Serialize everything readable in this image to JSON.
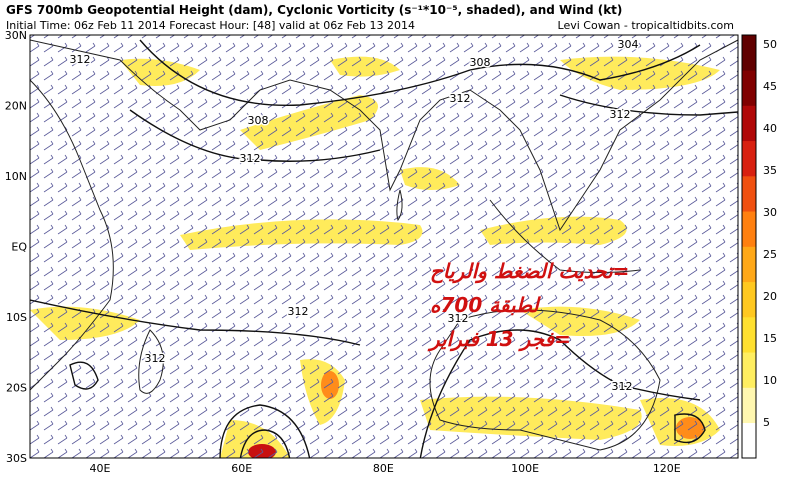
{
  "header": {
    "title": "GFS 700mb Geopotential Height (dam), Cyclonic Vorticity (s⁻¹*10⁻⁵, shaded), and Wind (kt)",
    "subtitle": "Initial Time: 06z Feb 11 2014  Forecast Hour: [48]  valid at 06z Feb 13 2014",
    "credit": "Levi Cowan - tropicaltidbits.com"
  },
  "map": {
    "lat_labels": [
      "30N",
      "20N",
      "10N",
      "EQ",
      "10S",
      "20S",
      "30S"
    ],
    "lon_labels": [
      "40E",
      "60E",
      "80E",
      "100E",
      "120E"
    ],
    "contour_labels": [
      "312",
      "308",
      "304",
      "308",
      "312",
      "312",
      "312",
      "312",
      "312",
      "312",
      "312"
    ]
  },
  "overlay": {
    "lines": [
      "=تحديث الضغط والرياح",
      "لطبقة 700ه",
      "=فجر 13 فبراير"
    ]
  },
  "colorbar": {
    "labels": [
      "50",
      "45",
      "40",
      "35",
      "30",
      "25",
      "20",
      "15",
      "10",
      "5"
    ],
    "colors": [
      "#ffffff",
      "#fff7b0",
      "#ffee60",
      "#ffe030",
      "#ffc820",
      "#ffa818",
      "#ff8010",
      "#f05010",
      "#d82010",
      "#b00808",
      "#800000",
      "#600000"
    ]
  }
}
